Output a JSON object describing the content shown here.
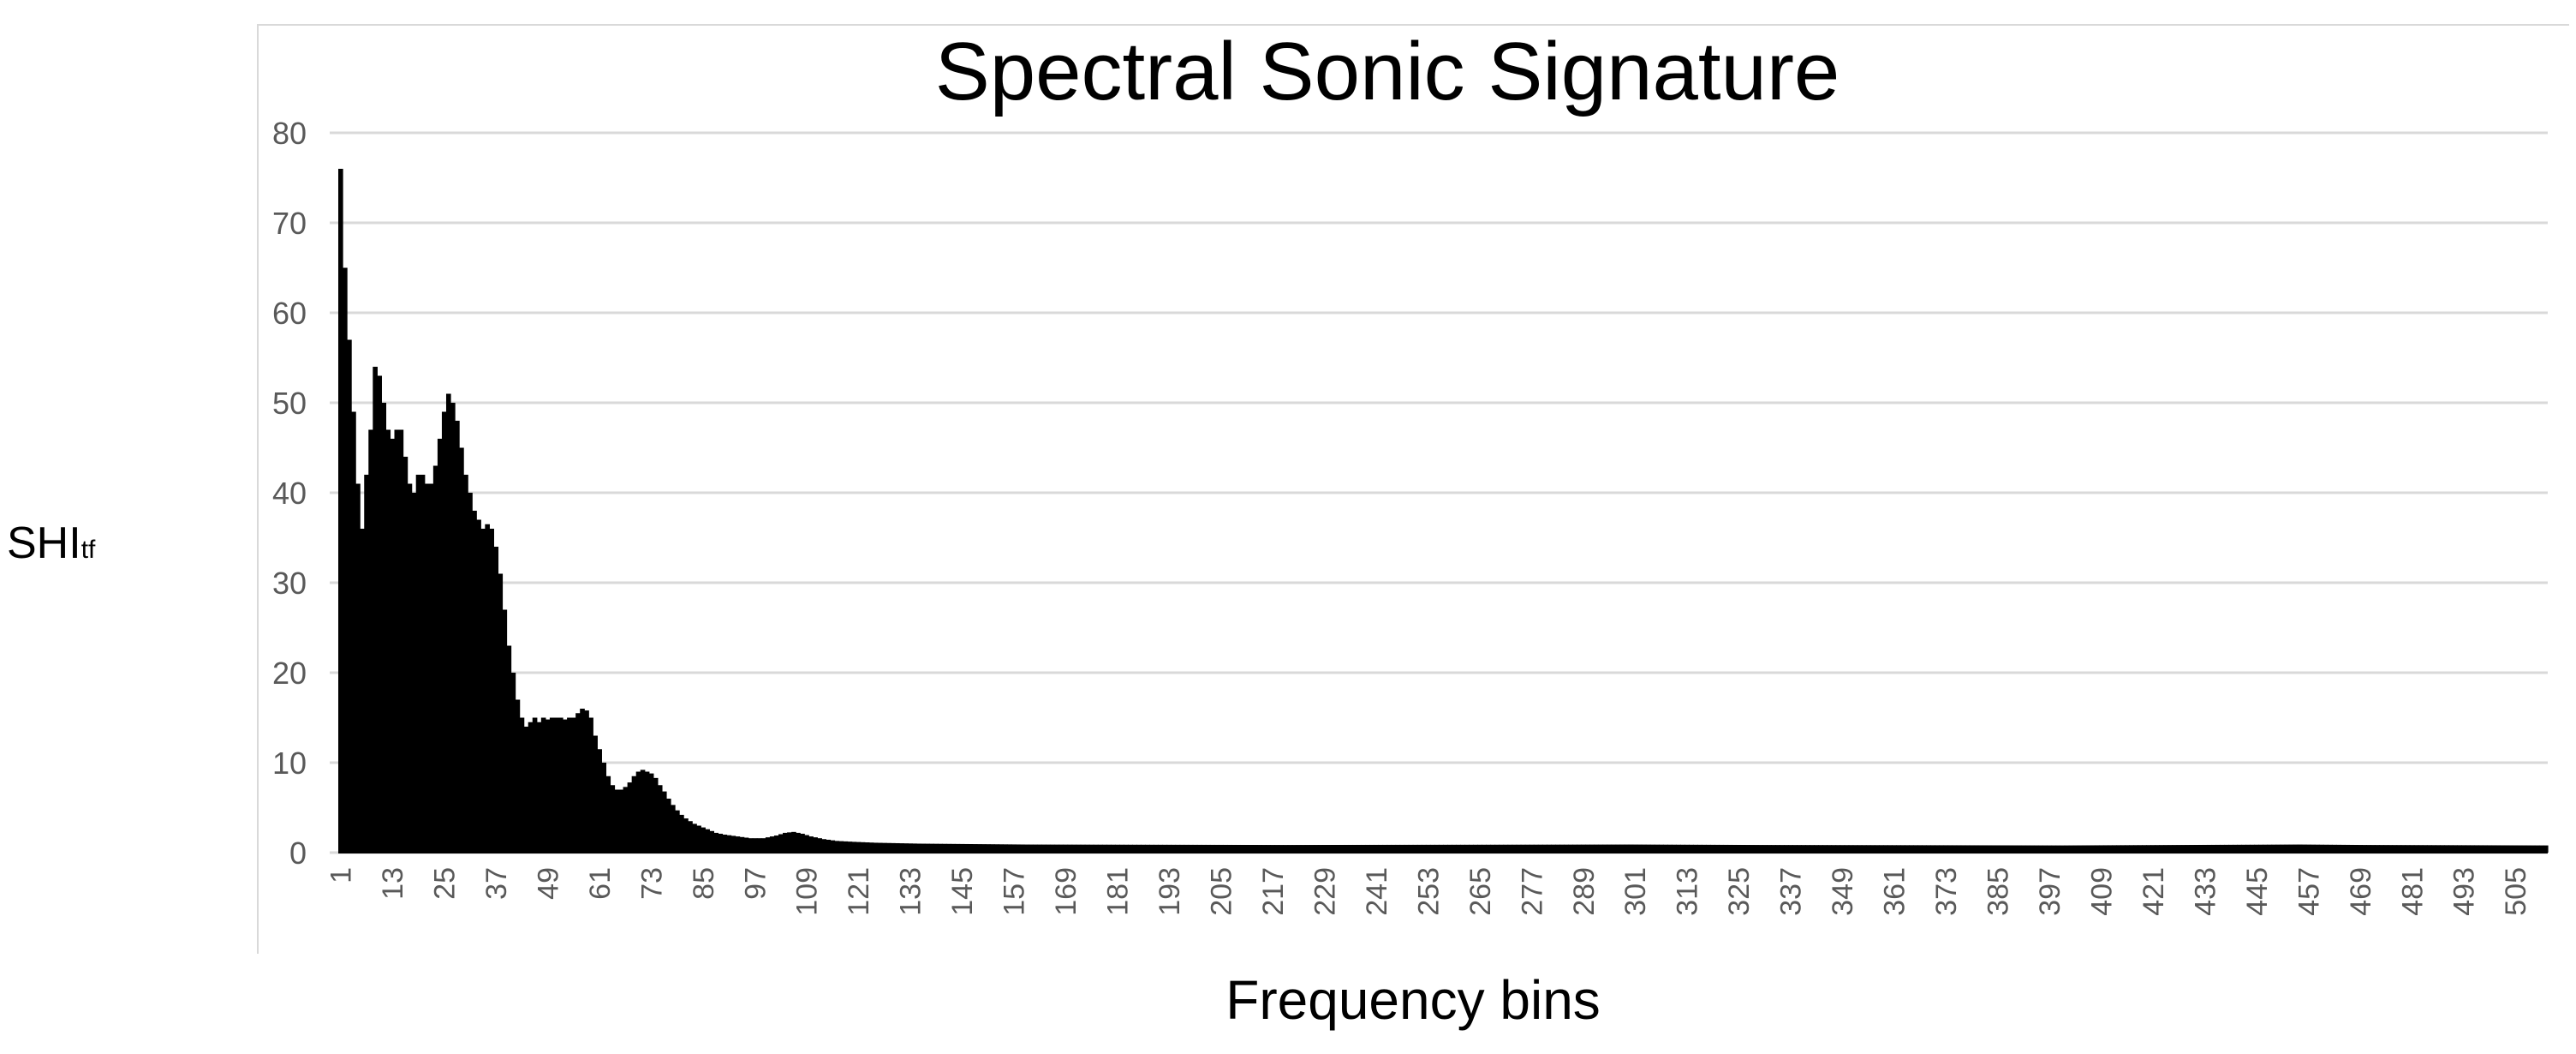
{
  "chart_data": {
    "type": "bar",
    "title": "Spectral Sonic Signature",
    "xlabel": "Frequency bins",
    "ylabel": "SHI",
    "ylabel_subscript": "tf",
    "ylim": [
      0,
      80
    ],
    "yticks": [
      0,
      10,
      20,
      30,
      40,
      50,
      60,
      70,
      80
    ],
    "grid": true,
    "bar_color": "#000000",
    "grid_color": "#d9d9d9",
    "x_start": 1,
    "x_end": 512,
    "x_tick_step": 12,
    "x_tick_labels": [
      "1",
      "13",
      "25",
      "37",
      "49",
      "61",
      "73",
      "85",
      "97",
      "109",
      "121",
      "133",
      "145",
      "157",
      "169",
      "181",
      "193",
      "205",
      "217",
      "229",
      "241",
      "253",
      "265",
      "277",
      "289",
      "301",
      "313",
      "325",
      "337",
      "349",
      "361",
      "373",
      "385",
      "397",
      "409",
      "421",
      "433",
      "445",
      "457",
      "469",
      "481",
      "493",
      "505"
    ],
    "profile_points": [
      [
        1,
        76
      ],
      [
        2,
        65
      ],
      [
        3,
        57
      ],
      [
        4,
        49
      ],
      [
        5,
        41
      ],
      [
        6,
        36
      ],
      [
        7,
        42
      ],
      [
        8,
        47
      ],
      [
        9,
        54
      ],
      [
        10,
        53
      ],
      [
        11,
        50
      ],
      [
        12,
        47
      ],
      [
        13,
        46
      ],
      [
        14,
        47
      ],
      [
        15,
        47
      ],
      [
        16,
        44
      ],
      [
        17,
        41
      ],
      [
        18,
        40
      ],
      [
        19,
        42
      ],
      [
        20,
        42
      ],
      [
        21,
        41
      ],
      [
        22,
        41
      ],
      [
        23,
        43
      ],
      [
        24,
        46
      ],
      [
        25,
        49
      ],
      [
        26,
        51
      ],
      [
        27,
        50
      ],
      [
        28,
        48
      ],
      [
        29,
        45
      ],
      [
        30,
        42
      ],
      [
        31,
        40
      ],
      [
        32,
        38
      ],
      [
        33,
        37
      ],
      [
        34,
        36
      ],
      [
        35,
        36.5
      ],
      [
        36,
        36
      ],
      [
        37,
        34
      ],
      [
        38,
        31
      ],
      [
        39,
        27
      ],
      [
        40,
        23
      ],
      [
        41,
        20
      ],
      [
        42,
        17
      ],
      [
        43,
        15
      ],
      [
        44,
        14
      ],
      [
        45,
        14.5
      ],
      [
        46,
        15
      ],
      [
        47,
        14.5
      ],
      [
        48,
        15
      ],
      [
        49,
        14.8
      ],
      [
        50,
        15
      ],
      [
        51,
        15
      ],
      [
        52,
        15
      ],
      [
        53,
        14.8
      ],
      [
        54,
        15
      ],
      [
        55,
        15
      ],
      [
        56,
        15.5
      ],
      [
        57,
        16
      ],
      [
        58,
        15.8
      ],
      [
        59,
        15
      ],
      [
        60,
        13
      ],
      [
        61,
        11.5
      ],
      [
        62,
        10
      ],
      [
        63,
        8.5
      ],
      [
        64,
        7.5
      ],
      [
        65,
        7
      ],
      [
        66,
        7
      ],
      [
        67,
        7.3
      ],
      [
        68,
        7.8
      ],
      [
        69,
        8.5
      ],
      [
        70,
        9
      ],
      [
        71,
        9.2
      ],
      [
        72,
        9
      ],
      [
        73,
        8.8
      ],
      [
        74,
        8.3
      ],
      [
        75,
        7.5
      ],
      [
        76,
        6.8
      ],
      [
        77,
        6
      ],
      [
        78,
        5.3
      ],
      [
        79,
        4.7
      ],
      [
        80,
        4.2
      ],
      [
        81,
        3.8
      ],
      [
        82,
        3.5
      ],
      [
        83,
        3.2
      ],
      [
        84,
        3
      ],
      [
        85,
        2.8
      ],
      [
        86,
        2.6
      ],
      [
        87,
        2.4
      ],
      [
        88,
        2.2
      ],
      [
        90,
        2
      ],
      [
        93,
        1.8
      ],
      [
        96,
        1.6
      ],
      [
        99,
        1.6
      ],
      [
        102,
        1.9
      ],
      [
        104,
        2.2
      ],
      [
        106,
        2.3
      ],
      [
        108,
        2.1
      ],
      [
        110,
        1.8
      ],
      [
        113,
        1.5
      ],
      [
        116,
        1.3
      ],
      [
        120,
        1.2
      ],
      [
        125,
        1.1
      ],
      [
        135,
        1
      ],
      [
        160,
        0.9
      ],
      [
        220,
        0.85
      ],
      [
        300,
        0.9
      ],
      [
        330,
        0.85
      ],
      [
        400,
        0.8
      ],
      [
        455,
        0.9
      ],
      [
        470,
        0.85
      ],
      [
        512,
        0.8
      ]
    ]
  }
}
